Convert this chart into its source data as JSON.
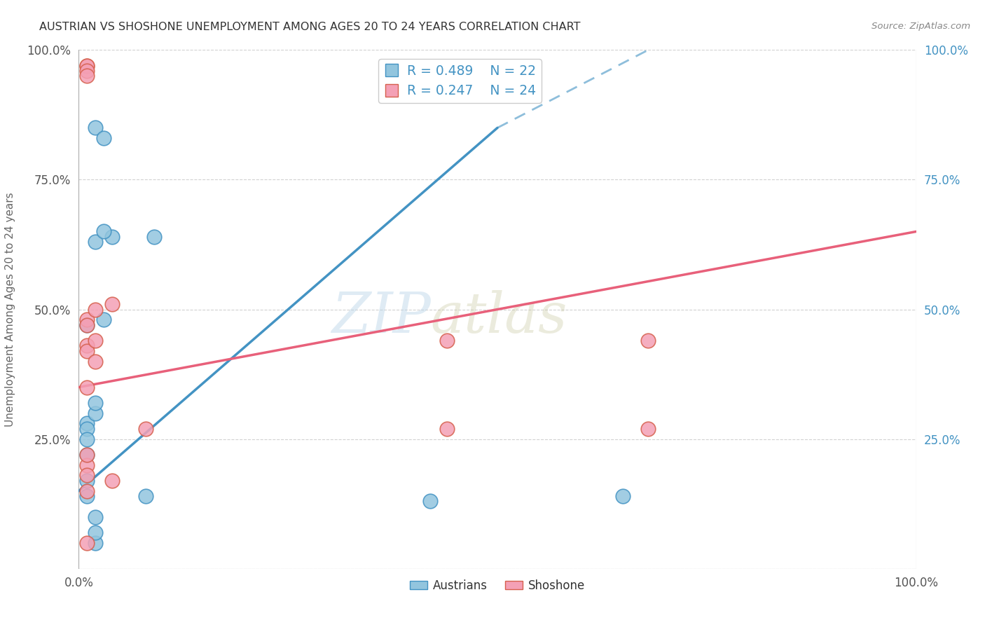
{
  "title": "AUSTRIAN VS SHOSHONE UNEMPLOYMENT AMONG AGES 20 TO 24 YEARS CORRELATION CHART",
  "source": "Source: ZipAtlas.com",
  "ylabel": "Unemployment Among Ages 20 to 24 years",
  "watermark_zip": "ZIP",
  "watermark_atlas": "atlas",
  "blue_label": "Austrians",
  "pink_label": "Shoshone",
  "blue_R": "R = 0.489",
  "blue_N": "N = 22",
  "pink_R": "R = 0.247",
  "pink_N": "N = 24",
  "blue_color": "#92c5de",
  "pink_color": "#f4a0b5",
  "blue_edge_color": "#4393c3",
  "pink_edge_color": "#d6604d",
  "blue_line_color": "#4393c3",
  "pink_line_color": "#e8607a",
  "background_color": "#ffffff",
  "grid_color": "#cccccc",
  "austrians_x": [
    2,
    3,
    2,
    1,
    1,
    1,
    1,
    1,
    1,
    1,
    3,
    4,
    2,
    2,
    3,
    9,
    42,
    65,
    8,
    2,
    2,
    2
  ],
  "austrians_y": [
    85,
    83,
    63,
    47,
    28,
    27,
    25,
    22,
    17,
    14,
    48,
    64,
    30,
    32,
    65,
    64,
    13,
    14,
    14,
    5,
    7,
    10
  ],
  "shoshone_x": [
    1,
    1,
    1,
    1,
    1,
    1,
    1,
    1,
    1,
    1,
    2,
    2,
    2,
    4,
    4,
    8,
    44,
    68,
    68,
    1,
    1,
    1,
    1,
    44
  ],
  "shoshone_y": [
    97,
    97,
    96,
    95,
    48,
    47,
    43,
    42,
    20,
    5,
    50,
    44,
    40,
    51,
    17,
    27,
    44,
    44,
    27,
    35,
    22,
    18,
    15,
    27
  ],
  "xlim": [
    0,
    100
  ],
  "ylim": [
    0,
    100
  ],
  "xticks": [
    0,
    25,
    50,
    75,
    100
  ],
  "xticklabels": [
    "0.0%",
    "",
    "",
    "",
    "100.0%"
  ],
  "yticks": [
    0,
    25,
    50,
    75,
    100
  ],
  "yticklabels_left": [
    "",
    "25.0%",
    "50.0%",
    "75.0%",
    "100.0%"
  ],
  "yticklabels_right": [
    "",
    "25.0%",
    "50.0%",
    "75.0%",
    "100.0%"
  ],
  "blue_line_x": [
    0,
    68
  ],
  "blue_line_y_start": 15,
  "pink_line_y_start": 35,
  "pink_line_y_end": 65
}
